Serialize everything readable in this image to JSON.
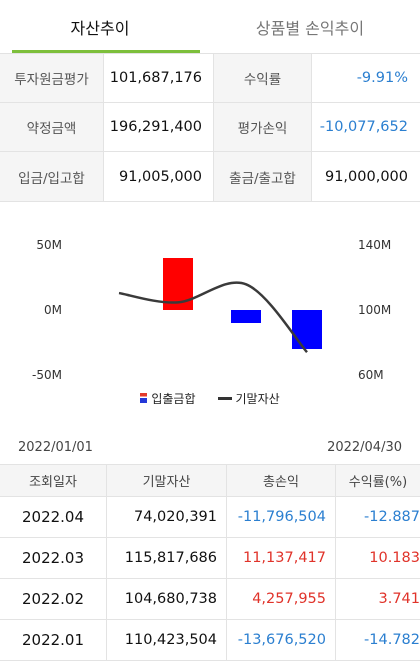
{
  "tabs": [
    {
      "label": "자산추이",
      "active": true
    },
    {
      "label": "상품별 손익추이",
      "active": false
    }
  ],
  "summary": {
    "rows": [
      {
        "label1": "투자원금평가",
        "value1": "101,687,176",
        "label2": "수익률",
        "value2": "-9.91%",
        "value2_color": "blue"
      },
      {
        "label1": "약정금액",
        "value1": "196,291,400",
        "label2": "평가손익",
        "value2": "-10,077,652",
        "value2_color": "blue"
      },
      {
        "label1": "입금/입고합",
        "value1": "91,005,000",
        "label2": "출금/출고합",
        "value2": "91,000,000",
        "value2_color": "black"
      }
    ]
  },
  "chart_data": {
    "type": "bar",
    "categories": [
      "2022.01",
      "2022.02",
      "2022.03",
      "2022.04"
    ],
    "series": [
      {
        "name": "입출금합",
        "axis": "left",
        "values": [
          0,
          40000000,
          -10000000,
          -30000000
        ]
      },
      {
        "name": "기말자산",
        "axis": "right",
        "type": "line",
        "values": [
          110423504,
          104680738,
          115817686,
          74020391
        ]
      }
    ],
    "left_axis": {
      "ticks": [
        "50M",
        "0M",
        "-50M"
      ],
      "ylim": [
        -50000000,
        50000000
      ]
    },
    "right_axis": {
      "ticks": [
        "140M",
        "100M",
        "60M"
      ],
      "ylim": [
        60000000,
        140000000
      ]
    },
    "colors": {
      "bar_positive": "#ff0000",
      "bar_negative": "#0000ff",
      "line": "#3a3a3a"
    },
    "legend": {
      "position": "bottom",
      "items": [
        "입출금합",
        "기말자산"
      ]
    }
  },
  "period": {
    "start": "2022/01/01",
    "end": "2022/04/30"
  },
  "table": {
    "headers": [
      "조회일자",
      "기말자산",
      "총손익",
      "수익률(%)"
    ],
    "rows": [
      {
        "date": "2022.04",
        "asset": "74,020,391",
        "pl": "-11,796,504",
        "rate": "-12.887",
        "sign": "neg"
      },
      {
        "date": "2022.03",
        "asset": "115,817,686",
        "pl": "11,137,417",
        "rate": "10.183",
        "sign": "pos"
      },
      {
        "date": "2022.02",
        "asset": "104,680,738",
        "pl": "4,257,955",
        "rate": "3.741",
        "sign": "pos"
      },
      {
        "date": "2022.01",
        "asset": "110,423,504",
        "pl": "-13,676,520",
        "rate": "-14.782",
        "sign": "neg"
      }
    ]
  },
  "colors": {
    "accent": "#7dbf3b",
    "negative": "#2b7fd0",
    "positive": "#e0332a"
  }
}
